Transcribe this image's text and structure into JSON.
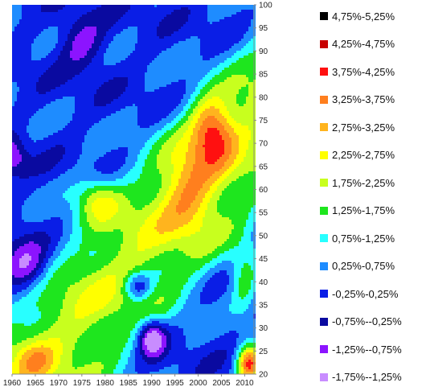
{
  "chart_data": {
    "type": "heatmap",
    "title": "",
    "xlabel": "",
    "ylabel": "",
    "x_ticks": [
      "1960",
      "1965",
      "1970",
      "1975",
      "1980",
      "1985",
      "1990",
      "1995",
      "2000",
      "2005",
      "2010"
    ],
    "y_ticks": [
      "20",
      "25",
      "30",
      "35",
      "40",
      "45",
      "50",
      "55",
      "60",
      "65",
      "70",
      "75",
      "80",
      "85",
      "90",
      "95",
      "100"
    ],
    "xlim": [
      1960,
      2012
    ],
    "ylim": [
      20,
      100
    ],
    "legend_placement": "right",
    "legend": [
      {
        "label": "4,75%-5,25%",
        "color": "#000000"
      },
      {
        "label": "4,25%-4,75%",
        "color": "#c80000"
      },
      {
        "label": "3,75%-4,25%",
        "color": "#ff1010"
      },
      {
        "label": "3,25%-3,75%",
        "color": "#ff7f1e"
      },
      {
        "label": "2,75%-3,25%",
        "color": "#ffb41e"
      },
      {
        "label": "2,25%-2,75%",
        "color": "#ffff00"
      },
      {
        "label": "1,75%-2,25%",
        "color": "#c8ff1e"
      },
      {
        "label": "1,25%-1,75%",
        "color": "#1ee61e"
      },
      {
        "label": "0,75%-1,25%",
        "color": "#28ffff"
      },
      {
        "label": "0,25%-0,75%",
        "color": "#1e8cff"
      },
      {
        "label": "-0,25%-0,25%",
        "color": "#0a1ee6"
      },
      {
        "label": "-0,75%--0,25%",
        "color": "#0a0aa0"
      },
      {
        "label": "-1,25%--0,75%",
        "color": "#8c14ff"
      },
      {
        "label": "-1,75%--1,25%",
        "color": "#c88cff"
      }
    ]
  }
}
